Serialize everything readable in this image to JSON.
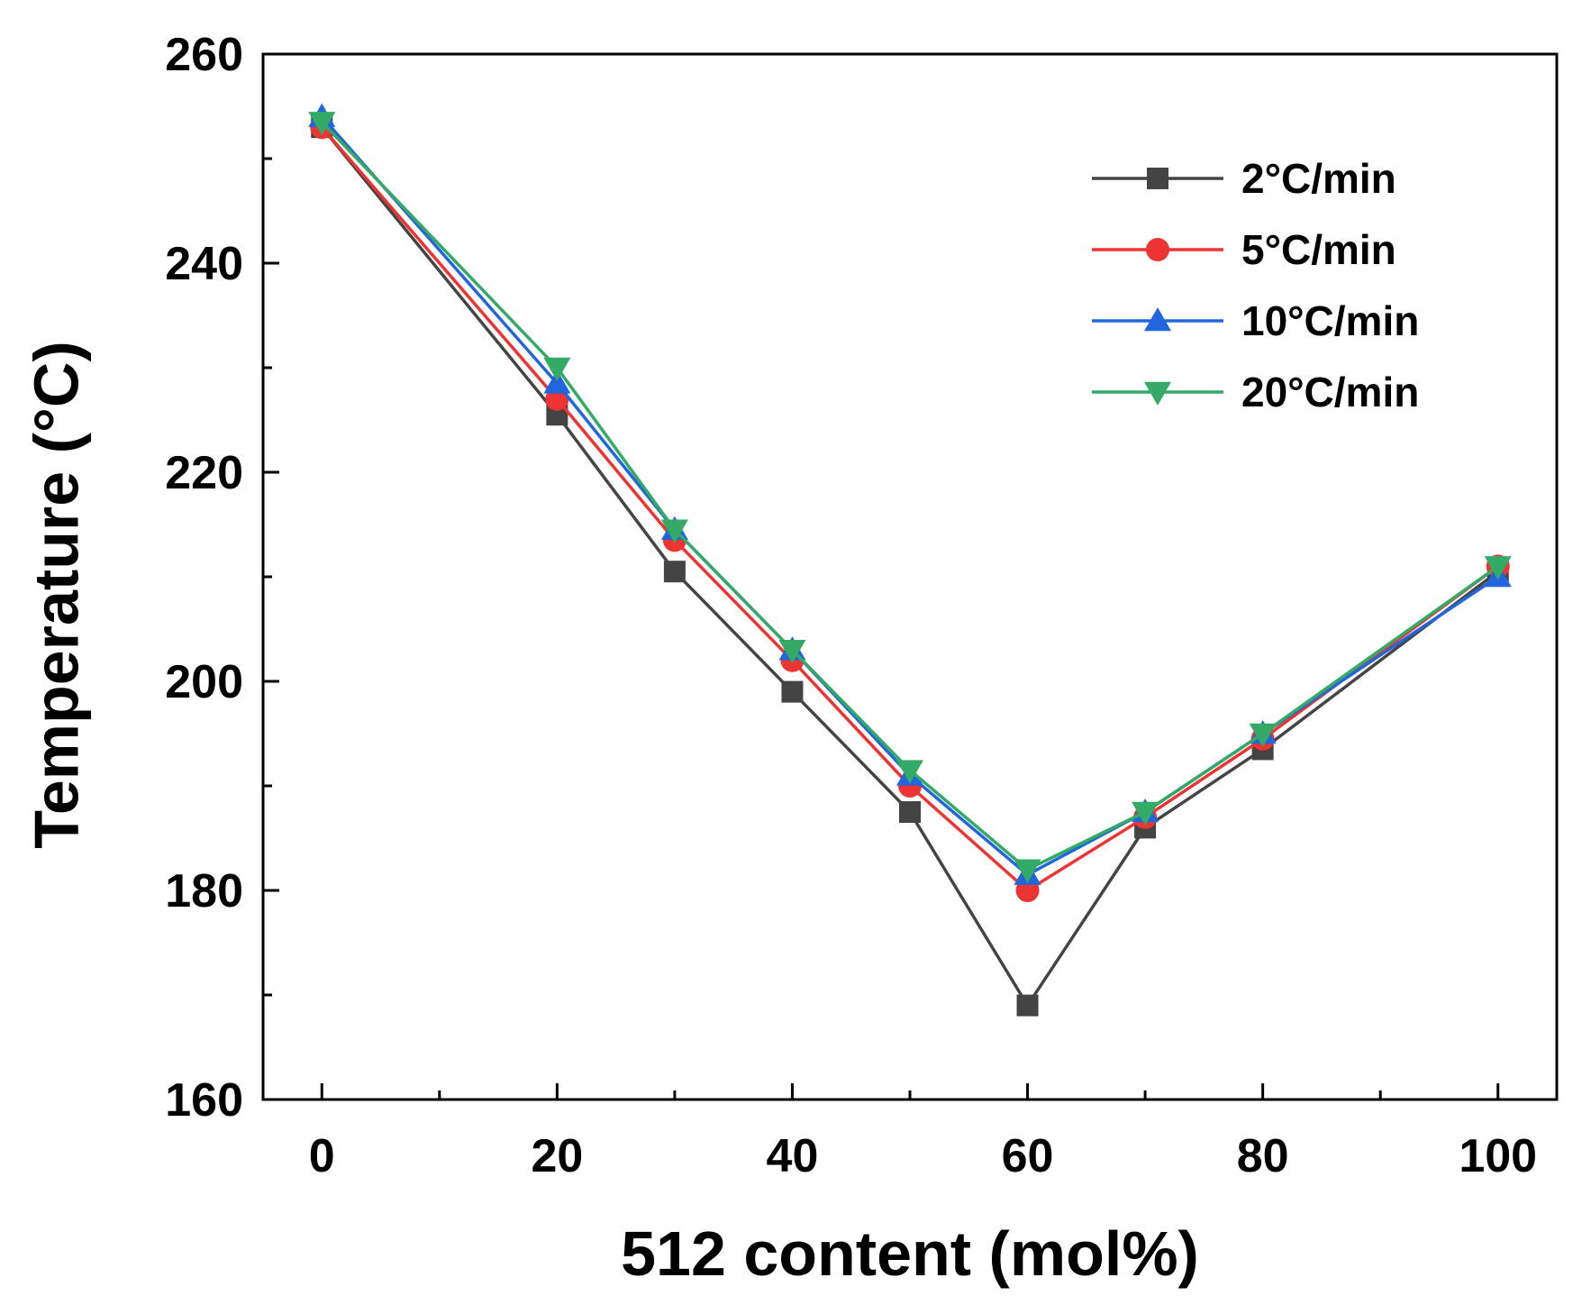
{
  "chart_data": {
    "type": "line",
    "title": "",
    "xlabel": "512 content (mol%)",
    "ylabel": "Temperature (°C)",
    "xlim": [
      -5,
      105
    ],
    "ylim": [
      160,
      260
    ],
    "x": [
      0,
      20,
      30,
      40,
      50,
      60,
      70,
      80,
      100
    ],
    "x_ticks": [
      0,
      20,
      40,
      60,
      80,
      100
    ],
    "x_minor_ticks": [
      10,
      30,
      50,
      70,
      90
    ],
    "y_ticks": [
      160,
      180,
      200,
      220,
      240,
      260
    ],
    "y_minor_ticks": [
      170,
      190,
      210,
      230,
      250
    ],
    "x_tick_labels": [
      "0",
      "20",
      "40",
      "60",
      "80",
      "100"
    ],
    "y_tick_labels": [
      "160",
      "180",
      "200",
      "220",
      "240",
      "260"
    ],
    "grid": false,
    "legend_position": "top-right",
    "series": [
      {
        "name": "2°C/min",
        "color": "#444444",
        "marker": "square",
        "values": [
          253.0,
          225.5,
          210.5,
          199.0,
          187.5,
          169.0,
          186.0,
          193.5,
          210.5
        ]
      },
      {
        "name": "5°C/min",
        "color": "#ee3333",
        "marker": "circle",
        "values": [
          253.0,
          227.0,
          213.5,
          202.0,
          190.0,
          180.0,
          187.0,
          194.5,
          211.0
        ]
      },
      {
        "name": "10°C/min",
        "color": "#2266dd",
        "marker": "triangle-up",
        "values": [
          254.0,
          228.5,
          214.5,
          203.0,
          191.0,
          181.5,
          187.5,
          195.0,
          210.0
        ]
      },
      {
        "name": "20°C/min",
        "color": "#33aa66",
        "marker": "triangle-down",
        "values": [
          253.5,
          230.0,
          214.5,
          203.0,
          191.5,
          182.0,
          187.5,
          195.0,
          211.0
        ]
      }
    ]
  }
}
